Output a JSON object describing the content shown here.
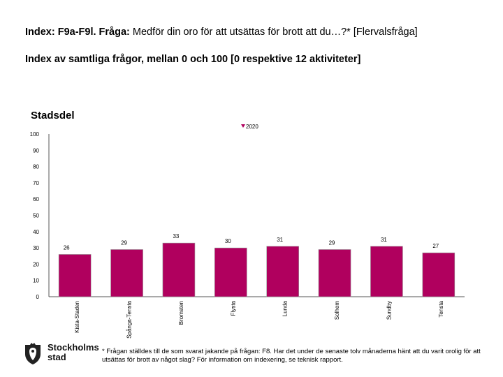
{
  "header": {
    "title_prefix": "Index: F9a-F9l. Fråga:",
    "title_rest": " Medför din oro för att utsättas för brott att du…?* [Flervalsfråga]",
    "subtitle": "Index av samtliga frågor, mellan 0 och 100 [0 respektive 12 aktiviteter]",
    "section_label": "Stadsdel"
  },
  "chart_data": {
    "type": "bar",
    "title": "",
    "xlabel": "",
    "ylabel": "",
    "ylim": [
      0,
      100
    ],
    "yticks": [
      0,
      10,
      20,
      30,
      40,
      50,
      60,
      70,
      80,
      90,
      100
    ],
    "grid": false,
    "legend": {
      "position": "top-center",
      "entries": [
        "2020"
      ]
    },
    "categories": [
      "Kista-Staden",
      "Spånga-Tensta",
      "Bromsten",
      "Flysta",
      "Lunda",
      "Solhem",
      "Sundby",
      "Tensta"
    ],
    "series": [
      {
        "name": "2020",
        "color": "#b0005e",
        "values": [
          26,
          29,
          33,
          30,
          31,
          29,
          31,
          27
        ]
      }
    ]
  },
  "footnote": "* Frågan ställdes till de som svarat jakande på frågan: F8. Har det under de senaste tolv månaderna hänt att du varit orolig för att utsättas för brott av något slag? För information om indexering, se teknisk rapport.",
  "logo": {
    "line1": "Stockholms",
    "line2": "stad",
    "icon": "stockholm-crest-icon"
  }
}
